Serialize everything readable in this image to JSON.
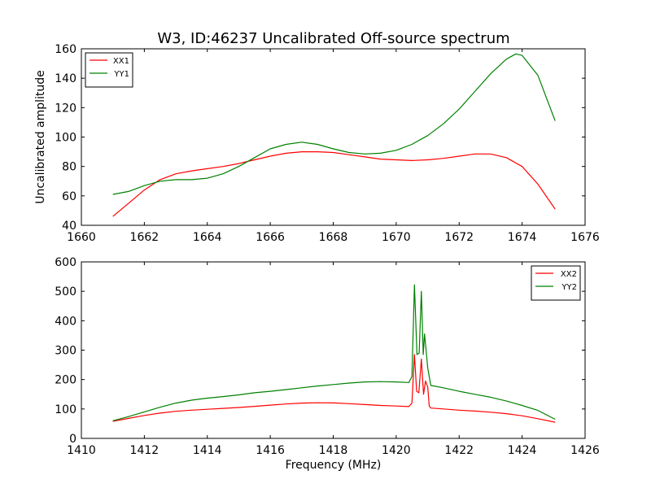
{
  "figure": {
    "title": "W3, ID:46237 Uncalibrated Off-source spectrum",
    "colors": {
      "red": "#ff0000",
      "green": "#008000"
    }
  },
  "chart_data": [
    {
      "type": "line",
      "title": "W3, ID:46237 Uncalibrated Off-source spectrum",
      "xlabel": "",
      "ylabel": "Uncalibrated amplitude",
      "xlim": [
        1660,
        1676
      ],
      "ylim": [
        40,
        160
      ],
      "xticks": [
        1660,
        1662,
        1664,
        1666,
        1668,
        1670,
        1672,
        1674,
        1676
      ],
      "yticks": [
        40,
        60,
        80,
        100,
        120,
        140,
        160
      ],
      "grid": false,
      "legend": "top-left",
      "series": [
        {
          "name": "XX1",
          "color": "#ff0000",
          "x": [
            1661.0,
            1661.5,
            1662.0,
            1662.5,
            1663.0,
            1663.5,
            1664.0,
            1664.5,
            1665.0,
            1665.5,
            1666.0,
            1666.5,
            1667.0,
            1667.5,
            1668.0,
            1668.5,
            1669.0,
            1669.5,
            1670.0,
            1670.5,
            1671.0,
            1671.5,
            1672.0,
            1672.5,
            1673.0,
            1673.5,
            1674.0,
            1674.5,
            1675.05
          ],
          "y": [
            46,
            55,
            64,
            71,
            75,
            77,
            78.5,
            80,
            82,
            84.5,
            87,
            89,
            90,
            90,
            89.5,
            88,
            86.5,
            85,
            84.5,
            84,
            84.5,
            85.5,
            87,
            88.5,
            88.5,
            86,
            80,
            68,
            51
          ]
        },
        {
          "name": "YY1",
          "color": "#008000",
          "x": [
            1661.0,
            1661.5,
            1662.0,
            1662.5,
            1663.0,
            1663.5,
            1664.0,
            1664.5,
            1665.0,
            1665.5,
            1666.0,
            1666.5,
            1667.0,
            1667.5,
            1668.0,
            1668.5,
            1669.0,
            1669.5,
            1670.0,
            1670.5,
            1671.0,
            1671.5,
            1672.0,
            1672.5,
            1673.0,
            1673.5,
            1673.8,
            1674.0,
            1674.5,
            1675.05
          ],
          "y": [
            61,
            63,
            67,
            70,
            71,
            71,
            72,
            75,
            80,
            86,
            92,
            95,
            96.5,
            95,
            92,
            89.5,
            88.5,
            89,
            91,
            95,
            101,
            109,
            119,
            131,
            143,
            153,
            156.5,
            155.5,
            142,
            111
          ]
        }
      ]
    },
    {
      "type": "line",
      "title": "",
      "xlabel": "Frequency (MHz)",
      "ylabel": "",
      "xlim": [
        1410,
        1426
      ],
      "ylim": [
        0,
        600
      ],
      "xticks": [
        1410,
        1412,
        1414,
        1416,
        1418,
        1420,
        1422,
        1424,
        1426
      ],
      "yticks": [
        0,
        100,
        200,
        300,
        400,
        500,
        600
      ],
      "grid": false,
      "legend": "top-right",
      "series": [
        {
          "name": "XX2",
          "color": "#ff0000",
          "x": [
            1411.0,
            1411.5,
            1412.0,
            1412.5,
            1413.0,
            1413.5,
            1414.0,
            1414.5,
            1415.0,
            1415.5,
            1416.0,
            1416.5,
            1417.0,
            1417.5,
            1418.0,
            1418.5,
            1419.0,
            1419.5,
            1420.0,
            1420.4,
            1420.5,
            1420.58,
            1420.65,
            1420.72,
            1420.8,
            1420.87,
            1420.93,
            1421.0,
            1421.05,
            1421.1,
            1421.5,
            1422.0,
            1422.5,
            1423.0,
            1423.5,
            1424.0,
            1424.5,
            1425.05
          ],
          "y": [
            58,
            68,
            78,
            86,
            92,
            96,
            99,
            102,
            105,
            109,
            113,
            117,
            120,
            121,
            120.5,
            118,
            115,
            112,
            110,
            108,
            120,
            285,
            160,
            155,
            270,
            150,
            195,
            175,
            110,
            103,
            100,
            96,
            93,
            89,
            84,
            77,
            67,
            55
          ]
        },
        {
          "name": "YY2",
          "color": "#008000",
          "x": [
            1411.0,
            1411.5,
            1412.0,
            1412.5,
            1413.0,
            1413.5,
            1414.0,
            1414.5,
            1415.0,
            1415.5,
            1416.0,
            1416.5,
            1417.0,
            1417.5,
            1418.0,
            1418.5,
            1419.0,
            1419.5,
            1420.0,
            1420.4,
            1420.5,
            1420.58,
            1420.66,
            1420.73,
            1420.8,
            1420.86,
            1420.9,
            1420.95,
            1421.0,
            1421.05,
            1421.1,
            1421.5,
            1422.0,
            1422.5,
            1423.0,
            1423.5,
            1424.0,
            1424.5,
            1425.05
          ],
          "y": [
            60,
            74,
            90,
            106,
            120,
            130,
            137,
            142,
            148,
            155,
            160,
            166,
            172,
            178,
            183,
            188,
            192,
            193,
            192,
            190,
            210,
            522,
            285,
            290,
            500,
            285,
            355,
            300,
            240,
            210,
            180,
            172,
            160,
            150,
            140,
            127,
            112,
            95,
            65
          ]
        }
      ]
    }
  ]
}
